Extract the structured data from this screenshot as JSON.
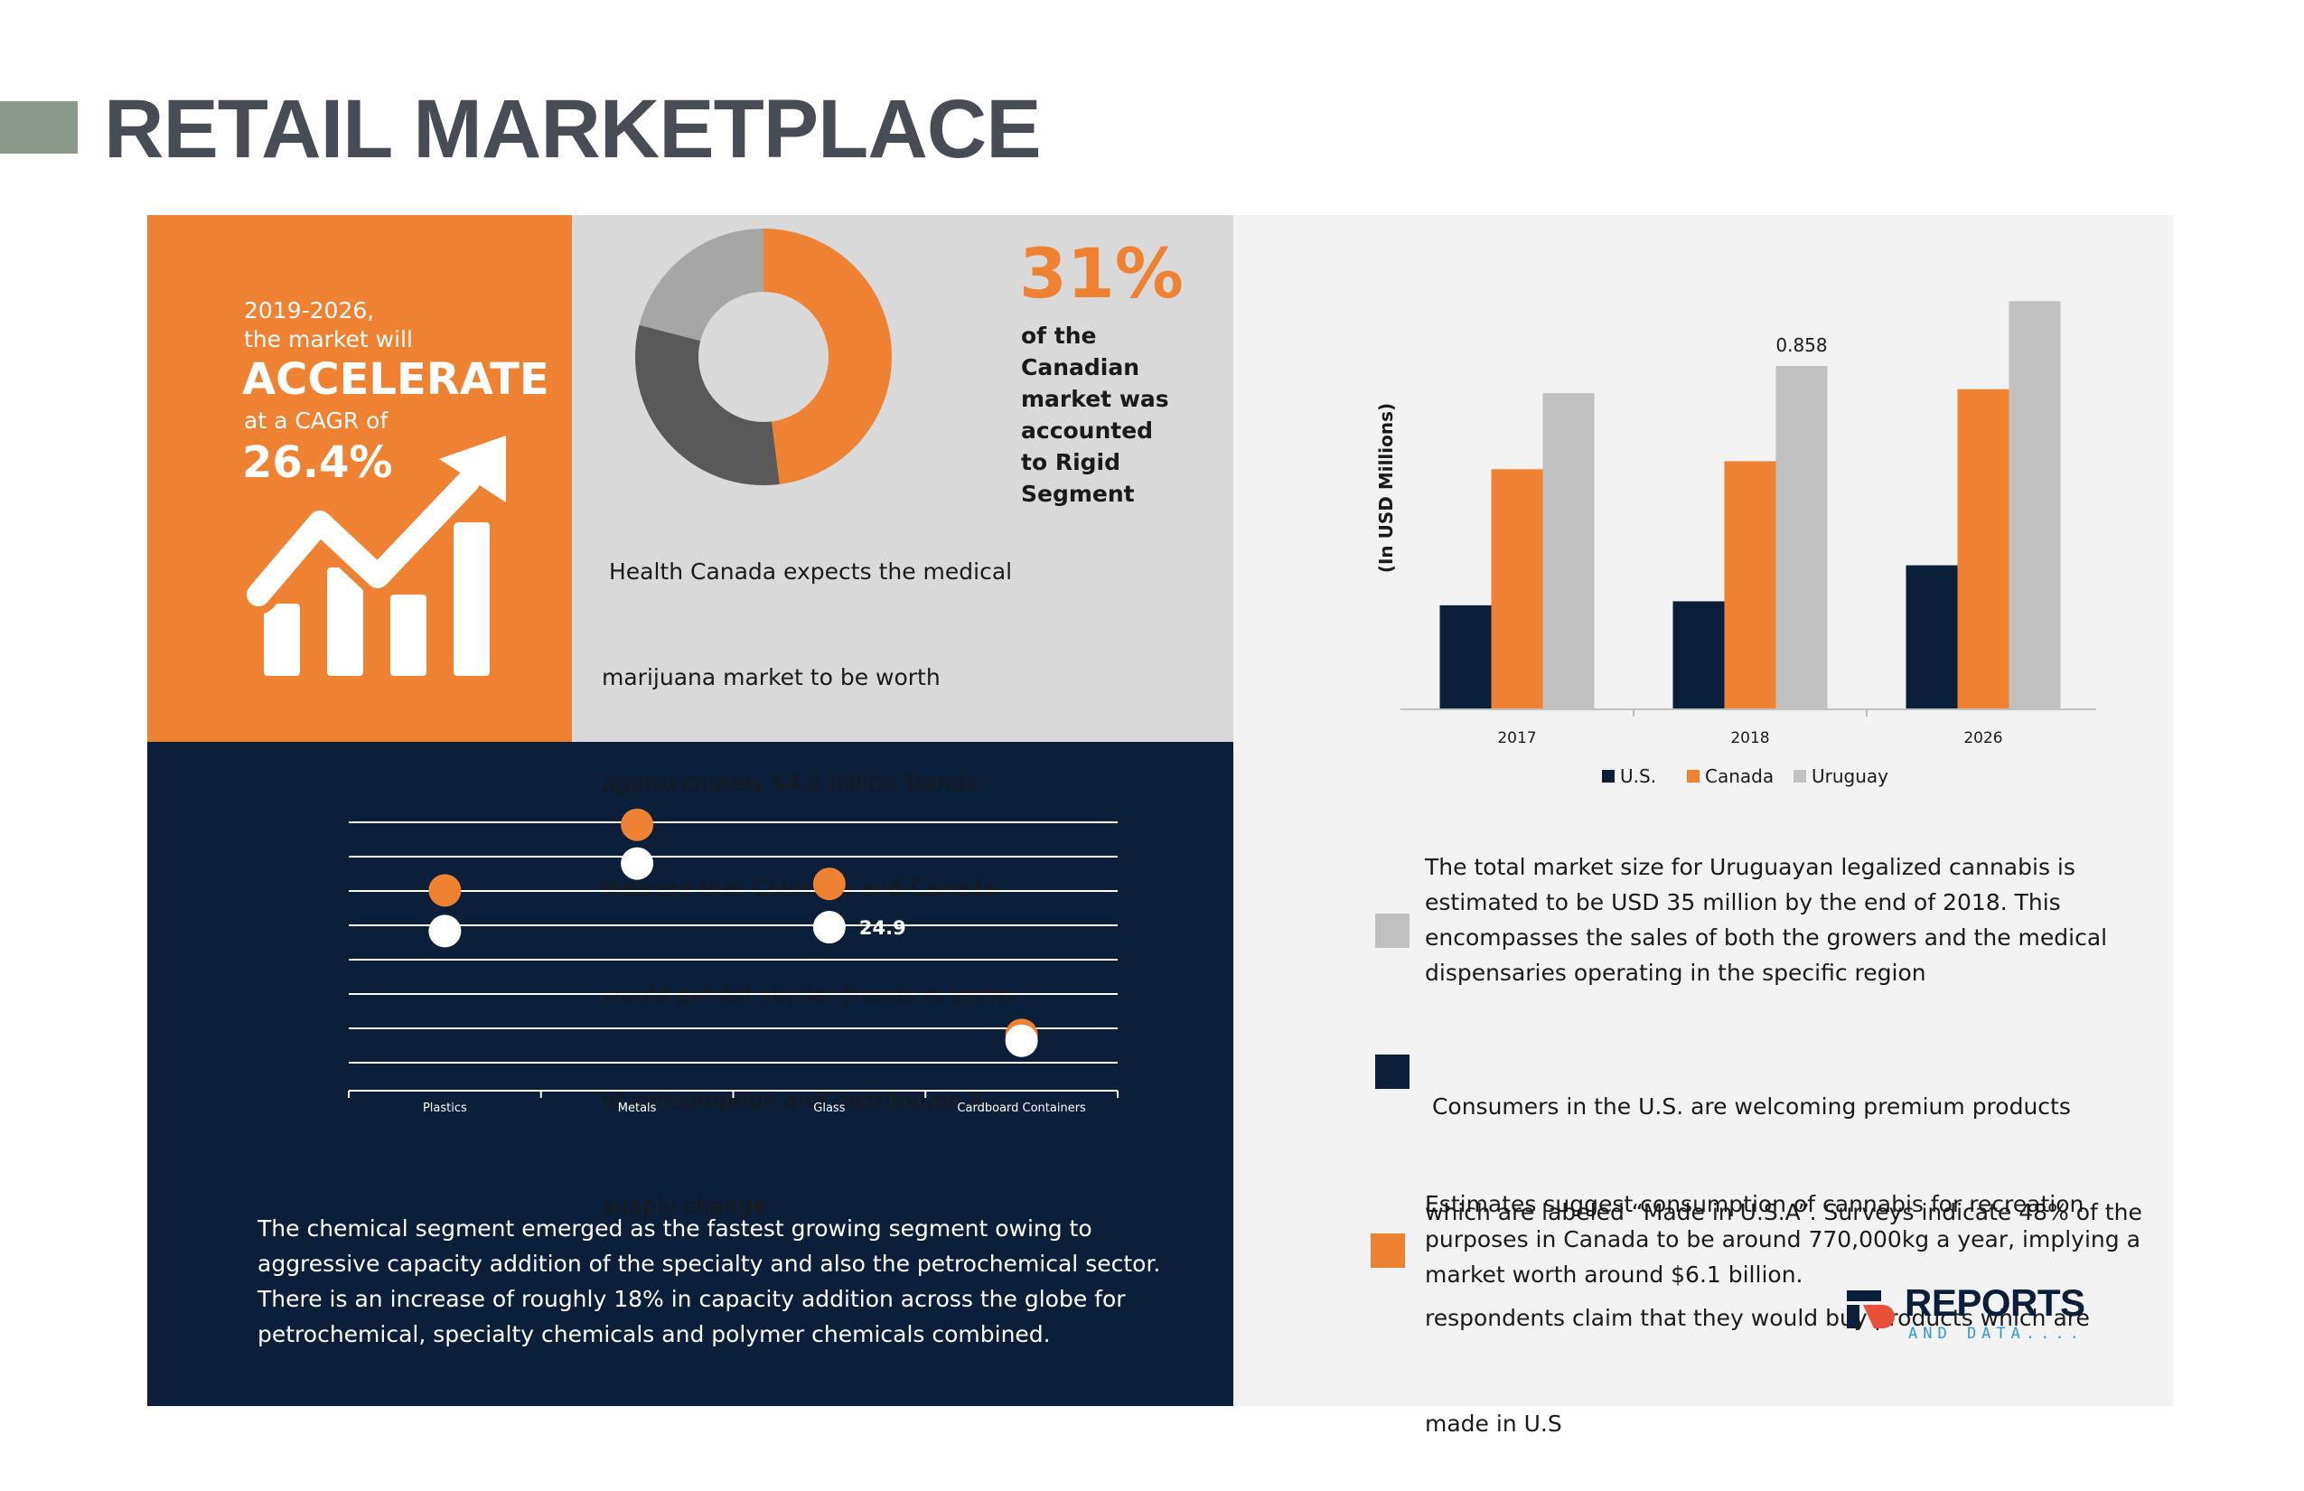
{
  "page": {
    "title": "RETAIL MARKETPLACE"
  },
  "cagr_panel": {
    "line1": "2019-2026,",
    "line2": "the market will",
    "headline": "ACCELERATE",
    "line3": "at a CAGR of",
    "value": "26.4%",
    "icon": "growth-chart-arrow-icon"
  },
  "gray_panel": {
    "percent": "31%",
    "percent_desc_lines": [
      "of the",
      "Canadian",
      "market was",
      "accounted",
      "to Rigid",
      "Segment"
    ],
    "paragraph_lines": [
      " Health Canada expects the medical",
      "marijuana market to be worth",
      "approximately $4.2 billion Trends",
      "indicate that Colorado and Canada",
      "would exhibit similar trends in terms",
      "of consumption and distribution &",
      "supply change"
    ]
  },
  "navy_panel": {
    "paragraph_lines": [
      "The chemical segment emerged as the fastest growing segment owing to",
      "aggressive capacity addition of the specialty and also the petrochemical sector.",
      "There is an increase of roughly 18% in capacity addition across the globe for",
      "petrochemical, specialty chemicals and polymer chemicals combined."
    ]
  },
  "notes": [
    {
      "color": "#c0c0c0",
      "lines": [
        "The total market size for Uruguayan legalized cannabis is",
        "estimated to be USD 35 million by the end of 2018. This",
        "encompasses the sales of both the growers and the medical",
        "dispensaries operating in the specific region"
      ]
    },
    {
      "color": "#0b1f3a",
      "lines": [
        " Consumers in the U.S. are welcoming premium products",
        "which are labeled “Made in U.S.A”. Surveys indicate 48% of the",
        "respondents claim that they would buy products which are",
        "made in U.S"
      ]
    },
    {
      "color": "#ee8132",
      "lines": [
        "Estimates suggest consumption of cannabis for recreation",
        "purposes in Canada to be around 770,000kg a year, implying a",
        "market worth around $6.1 billion."
      ]
    }
  ],
  "logo": {
    "word": "REPORTS",
    "sub": "AND DATA...."
  },
  "colors": {
    "orange": "#ee8132",
    "navy": "#0b1f3a",
    "gray": "#c0c0c0",
    "dark_gray": "#595959",
    "light_gray": "#a6a6a6"
  },
  "chart_data": [
    {
      "type": "pie",
      "variant": "donut",
      "slices": [
        {
          "value": 48,
          "color": "#ee8132"
        },
        {
          "value": 31,
          "color": "#595959"
        },
        {
          "value": 21,
          "color": "#a6a6a6"
        }
      ]
    },
    {
      "type": "bar",
      "categories": [
        "2017",
        "2018",
        "2026"
      ],
      "ylabel": "(In USD Millions)",
      "ylim": [
        0,
        1.05
      ],
      "legend_position": "bottom",
      "series": [
        {
          "name": "U.S.",
          "color": "#0b1f3a",
          "values": [
            0.26,
            0.27,
            0.36
          ]
        },
        {
          "name": "Canada",
          "color": "#ee8132",
          "values": [
            0.6,
            0.62,
            0.8
          ]
        },
        {
          "name": "Uruguay",
          "color": "#c0c0c0",
          "values": [
            0.79,
            0.858,
            1.02
          ]
        }
      ],
      "data_labels": [
        {
          "series": "Uruguay",
          "category": "2018",
          "text": "0.858"
        }
      ]
    },
    {
      "type": "scatter",
      "categories": [
        "Plastics",
        "Metals",
        "Glass",
        "Cardboard Containers"
      ],
      "ylim": [
        0,
        45
      ],
      "grid": true,
      "series": [
        {
          "color": "#ee8132",
          "values": [
            30.5,
            40.5,
            31.5,
            8.5
          ]
        },
        {
          "color": "#ffffff",
          "values": [
            24.3,
            34.6,
            24.9,
            7.6
          ]
        }
      ],
      "data_labels": [
        {
          "category": "Glass",
          "series": 1,
          "text": "24.9"
        }
      ]
    }
  ]
}
